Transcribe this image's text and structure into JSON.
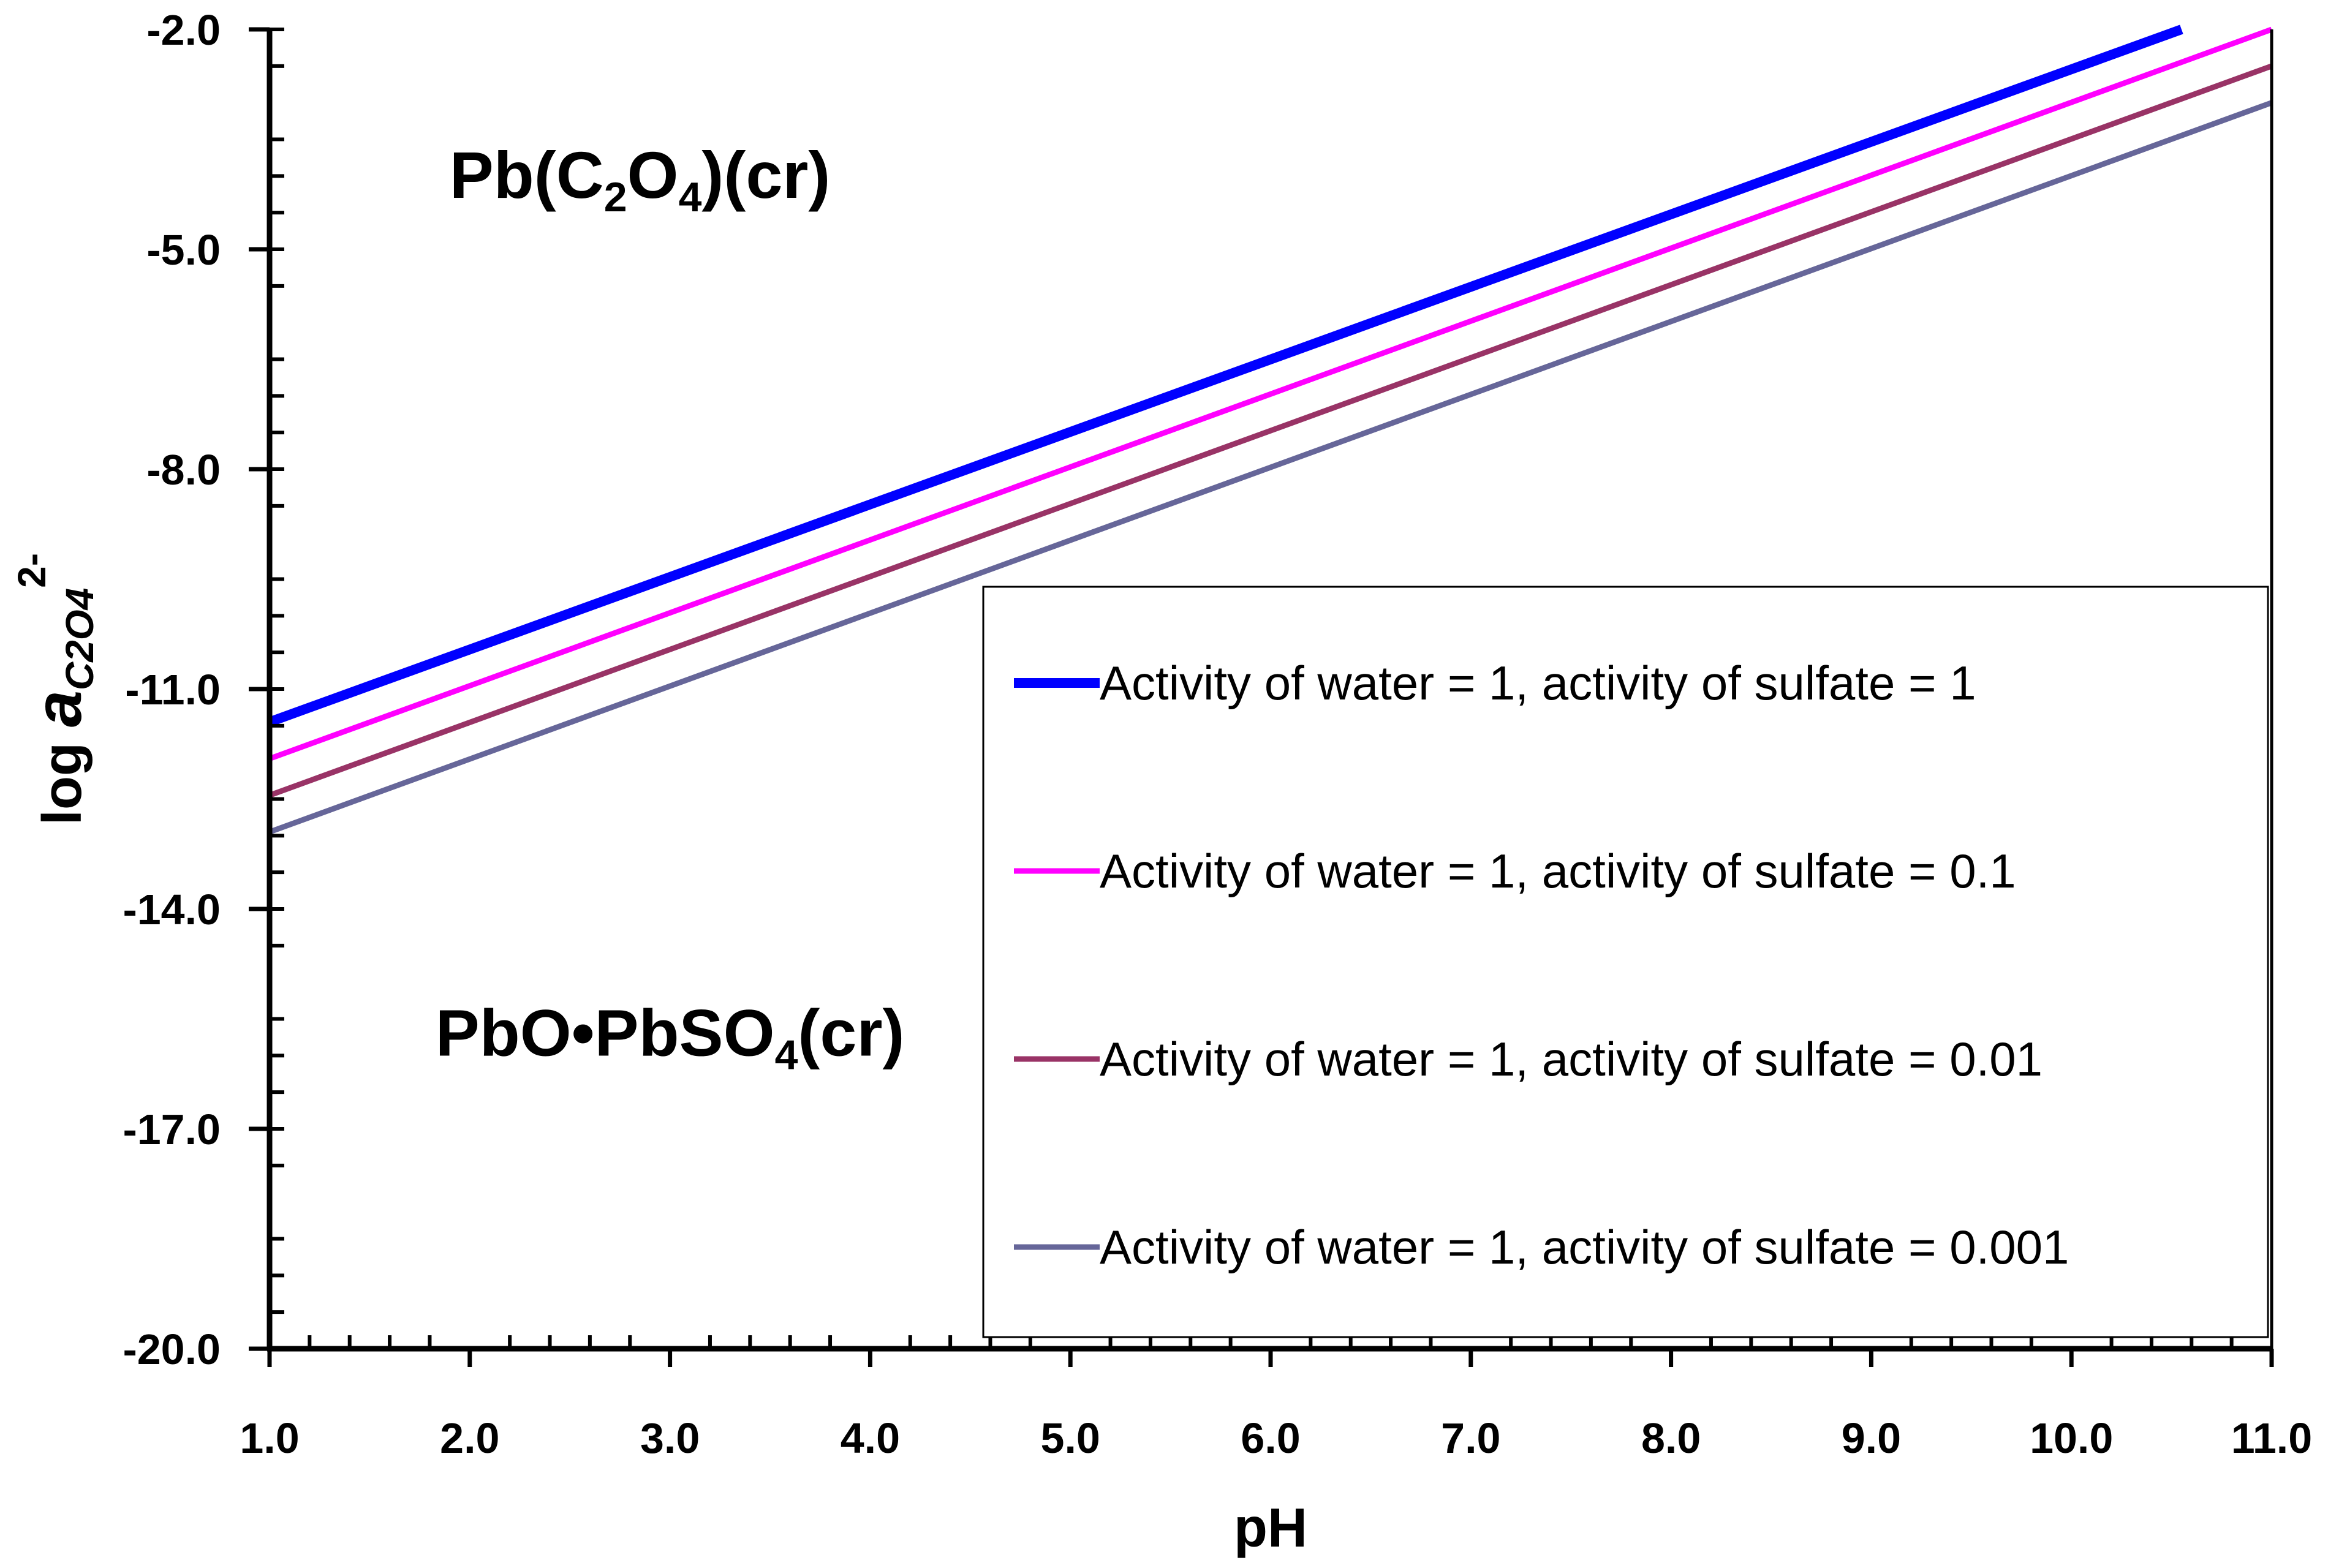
{
  "chart_data": {
    "type": "line",
    "title": "",
    "xlabel": "pH",
    "ylabel": {
      "prefix": "log ",
      "symbol": "a",
      "subscript": "C2O4",
      "superscript": "2-"
    },
    "xlim": [
      1.0,
      11.0
    ],
    "ylim": [
      -20.0,
      -2.0
    ],
    "x_ticks": [
      "1.0",
      "2.0",
      "3.0",
      "4.0",
      "5.0",
      "6.0",
      "7.0",
      "8.0",
      "9.0",
      "10.0",
      "11.0"
    ],
    "y_ticks": [
      "-2.0",
      "-5.0",
      "-8.0",
      "-11.0",
      "-14.0",
      "-17.0",
      "-20.0"
    ],
    "series": [
      {
        "name": "Activity of water = 1, activity of sulfate = 1",
        "color": "#0000ff",
        "x": [
          1.0,
          10.55
        ],
        "y": [
          -11.45,
          -2.0
        ]
      },
      {
        "name": "Activity of water = 1, activity of sulfate = 0.1",
        "color": "#ff00ff",
        "x": [
          1.0,
          11.0
        ],
        "y": [
          -11.95,
          -2.0
        ]
      },
      {
        "name": "Activity of water = 1, activity of sulfate = 0.01",
        "color": "#993366",
        "x": [
          1.0,
          11.0
        ],
        "y": [
          -12.45,
          -2.5
        ]
      },
      {
        "name": "Activity of water = 1, activity of sulfate = 0.001",
        "color": "#666699",
        "x": [
          1.0,
          11.0
        ],
        "y": [
          -12.95,
          -3.0
        ]
      }
    ],
    "annotations": [
      {
        "id": "upper",
        "parts": [
          "Pb(C",
          "2",
          "O",
          "4",
          ")(cr)"
        ],
        "x": 2.85,
        "y": -4.3
      },
      {
        "id": "lower",
        "parts": [
          "PbO•PbSO",
          "4",
          "(cr)"
        ],
        "x": 3.0,
        "y": -16.0
      }
    ],
    "legend": "bottom-right"
  }
}
